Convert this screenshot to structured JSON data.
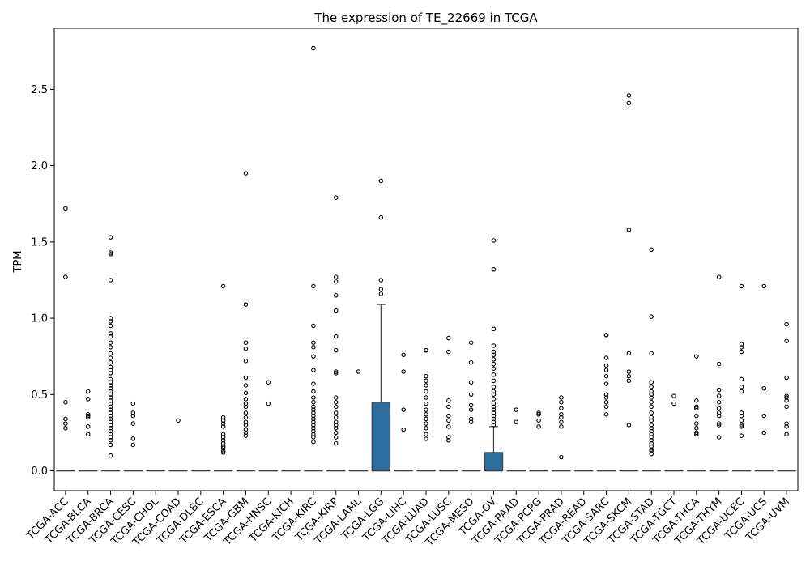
{
  "chart_data": {
    "type": "box",
    "title": "The expression of TE_22669 in TCGA",
    "xlabel": "",
    "ylabel": "TPM",
    "ylim": [
      -0.13,
      2.9
    ],
    "yticks": [
      0.0,
      0.5,
      1.0,
      1.5,
      2.0,
      2.5
    ],
    "ytick_labels": [
      "0.0",
      "0.5",
      "1.0",
      "1.5",
      "2.0",
      "2.5"
    ],
    "grid": false,
    "legend": "none",
    "box_color": "#2e6e9e",
    "categories": [
      "TCGA-ACC",
      "TCGA-BLCA",
      "TCGA-BRCA",
      "TCGA-CESC",
      "TCGA-CHOL",
      "TCGA-COAD",
      "TCGA-DLBC",
      "TCGA-ESCA",
      "TCGA-GBM",
      "TCGA-HNSC",
      "TCGA-KICH",
      "TCGA-KIRC",
      "TCGA-KIRP",
      "TCGA-LAML",
      "TCGA-LGG",
      "TCGA-LIHC",
      "TCGA-LUAD",
      "TCGA-LUSC",
      "TCGA-MESO",
      "TCGA-OV",
      "TCGA-PAAD",
      "TCGA-PCPG",
      "TCGA-PRAD",
      "TCGA-READ",
      "TCGA-SARC",
      "TCGA-SKCM",
      "TCGA-STAD",
      "TCGA-TGCT",
      "TCGA-THCA",
      "TCGA-THYM",
      "TCGA-UCEC",
      "TCGA-UCS",
      "TCGA-UVM"
    ],
    "boxes": [
      {
        "q1": 0,
        "median": 0,
        "q3": 0,
        "whisker_low": 0,
        "whisker_high": 0,
        "outliers": [
          1.72,
          1.27,
          0.45,
          0.34,
          0.31,
          0.28
        ]
      },
      {
        "q1": 0,
        "median": 0,
        "q3": 0,
        "whisker_low": 0,
        "whisker_high": 0,
        "outliers": [
          0.52,
          0.47,
          0.37,
          0.36,
          0.35,
          0.29,
          0.24
        ]
      },
      {
        "q1": 0,
        "median": 0,
        "q3": 0,
        "whisker_low": 0,
        "whisker_high": 0,
        "outliers": [
          1.53,
          1.43,
          1.42,
          1.25,
          1.0,
          0.98,
          0.95,
          0.9,
          0.88,
          0.84,
          0.81,
          0.77,
          0.74,
          0.71,
          0.68,
          0.66,
          0.64,
          0.6,
          0.58,
          0.56,
          0.54,
          0.52,
          0.5,
          0.48,
          0.46,
          0.44,
          0.42,
          0.4,
          0.38,
          0.36,
          0.34,
          0.32,
          0.3,
          0.28,
          0.26,
          0.24,
          0.22,
          0.2,
          0.17,
          0.1
        ]
      },
      {
        "q1": 0,
        "median": 0,
        "q3": 0,
        "whisker_low": 0,
        "whisker_high": 0,
        "outliers": [
          0.44,
          0.38,
          0.36,
          0.31,
          0.21,
          0.17
        ]
      },
      {
        "q1": 0,
        "median": 0,
        "q3": 0,
        "whisker_low": 0,
        "whisker_high": 0,
        "outliers": []
      },
      {
        "q1": 0,
        "median": 0,
        "q3": 0,
        "whisker_low": 0,
        "whisker_high": 0,
        "outliers": [
          0.33
        ]
      },
      {
        "q1": 0,
        "median": 0,
        "q3": 0,
        "whisker_low": 0,
        "whisker_high": 0,
        "outliers": []
      },
      {
        "q1": 0,
        "median": 0,
        "q3": 0,
        "whisker_low": 0,
        "whisker_high": 0,
        "outliers": [
          1.21,
          0.35,
          0.33,
          0.31,
          0.29,
          0.24,
          0.22,
          0.2,
          0.18,
          0.16,
          0.15,
          0.13,
          0.12
        ]
      },
      {
        "q1": 0,
        "median": 0,
        "q3": 0,
        "whisker_low": 0,
        "whisker_high": 0,
        "outliers": [
          1.95,
          1.09,
          0.84,
          0.8,
          0.72,
          0.61,
          0.56,
          0.51,
          0.47,
          0.44,
          0.42,
          0.38,
          0.35,
          0.32,
          0.3,
          0.27,
          0.25,
          0.23
        ]
      },
      {
        "q1": 0,
        "median": 0,
        "q3": 0,
        "whisker_low": 0,
        "whisker_high": 0,
        "outliers": [
          0.58,
          0.44
        ]
      },
      {
        "q1": 0,
        "median": 0,
        "q3": 0,
        "whisker_low": 0,
        "whisker_high": 0,
        "outliers": []
      },
      {
        "q1": 0,
        "median": 0,
        "q3": 0,
        "whisker_low": 0,
        "whisker_high": 0,
        "outliers": [
          2.77,
          1.21,
          0.95,
          0.84,
          0.81,
          0.75,
          0.66,
          0.57,
          0.52,
          0.48,
          0.45,
          0.42,
          0.4,
          0.38,
          0.36,
          0.34,
          0.32,
          0.3,
          0.28,
          0.26,
          0.24,
          0.22,
          0.19
        ]
      },
      {
        "q1": 0,
        "median": 0,
        "q3": 0,
        "whisker_low": 0,
        "whisker_high": 0,
        "outliers": [
          1.79,
          1.27,
          1.24,
          1.15,
          1.05,
          0.88,
          0.79,
          0.65,
          0.64,
          0.48,
          0.45,
          0.42,
          0.38,
          0.35,
          0.32,
          0.3,
          0.28,
          0.25,
          0.22,
          0.18
        ]
      },
      {
        "q1": 0,
        "median": 0,
        "q3": 0,
        "whisker_low": 0,
        "whisker_high": 0,
        "outliers": [
          0.65
        ]
      },
      {
        "q1": 0,
        "median": 0,
        "q3": 0.45,
        "whisker_low": 0,
        "whisker_high": 1.09,
        "outliers": [
          1.9,
          1.66,
          1.25,
          1.19,
          1.16
        ]
      },
      {
        "q1": 0,
        "median": 0,
        "q3": 0,
        "whisker_low": 0,
        "whisker_high": 0,
        "outliers": [
          0.76,
          0.65,
          0.4,
          0.27
        ]
      },
      {
        "q1": 0,
        "median": 0,
        "q3": 0,
        "whisker_low": 0,
        "whisker_high": 0,
        "outliers": [
          0.79,
          0.79,
          0.62,
          0.59,
          0.56,
          0.52,
          0.48,
          0.44,
          0.4,
          0.37,
          0.34,
          0.31,
          0.28,
          0.24,
          0.21
        ]
      },
      {
        "q1": 0,
        "median": 0,
        "q3": 0,
        "whisker_low": 0,
        "whisker_high": 0,
        "outliers": [
          0.87,
          0.78,
          0.46,
          0.42,
          0.36,
          0.33,
          0.29,
          0.22,
          0.2
        ]
      },
      {
        "q1": 0,
        "median": 0,
        "q3": 0,
        "whisker_low": 0,
        "whisker_high": 0,
        "outliers": [
          0.84,
          0.71,
          0.58,
          0.5,
          0.43,
          0.4,
          0.34,
          0.32
        ]
      },
      {
        "q1": 0,
        "median": 0,
        "q3": 0.12,
        "whisker_low": 0,
        "whisker_high": 0.29,
        "outliers": [
          1.51,
          1.32,
          0.93,
          0.82,
          0.78,
          0.76,
          0.73,
          0.7,
          0.67,
          0.63,
          0.59,
          0.55,
          0.52,
          0.5,
          0.47,
          0.44,
          0.42,
          0.4,
          0.38,
          0.36,
          0.34,
          0.32,
          0.3
        ]
      },
      {
        "q1": 0,
        "median": 0,
        "q3": 0,
        "whisker_low": 0,
        "whisker_high": 0,
        "outliers": [
          0.4,
          0.32
        ]
      },
      {
        "q1": 0,
        "median": 0,
        "q3": 0,
        "whisker_low": 0,
        "whisker_high": 0,
        "outliers": [
          0.38,
          0.37,
          0.33,
          0.29
        ]
      },
      {
        "q1": 0,
        "median": 0,
        "q3": 0,
        "whisker_low": 0,
        "whisker_high": 0,
        "outliers": [
          0.48,
          0.45,
          0.41,
          0.37,
          0.35,
          0.32,
          0.29,
          0.09
        ]
      },
      {
        "q1": 0,
        "median": 0,
        "q3": 0,
        "whisker_low": 0,
        "whisker_high": 0,
        "outliers": []
      },
      {
        "q1": 0,
        "median": 0,
        "q3": 0,
        "whisker_low": 0,
        "whisker_high": 0,
        "outliers": [
          0.89,
          0.89,
          0.74,
          0.69,
          0.66,
          0.62,
          0.57,
          0.5,
          0.48,
          0.45,
          0.42,
          0.37
        ]
      },
      {
        "q1": 0,
        "median": 0,
        "q3": 0,
        "whisker_low": 0,
        "whisker_high": 0,
        "outliers": [
          2.46,
          2.41,
          1.58,
          0.77,
          0.65,
          0.62,
          0.59,
          0.3
        ]
      },
      {
        "q1": 0,
        "median": 0,
        "q3": 0,
        "whisker_low": 0,
        "whisker_high": 0,
        "outliers": [
          1.45,
          1.01,
          0.77,
          0.58,
          0.55,
          0.52,
          0.5,
          0.48,
          0.45,
          0.42,
          0.38,
          0.35,
          0.33,
          0.3,
          0.28,
          0.26,
          0.24,
          0.22,
          0.2,
          0.18,
          0.16,
          0.14,
          0.13,
          0.11
        ]
      },
      {
        "q1": 0,
        "median": 0,
        "q3": 0,
        "whisker_low": 0,
        "whisker_high": 0,
        "outliers": [
          0.49,
          0.44
        ]
      },
      {
        "q1": 0,
        "median": 0,
        "q3": 0,
        "whisker_low": 0,
        "whisker_high": 0,
        "outliers": [
          0.75,
          0.46,
          0.42,
          0.41,
          0.36,
          0.31,
          0.28,
          0.25,
          0.24
        ]
      },
      {
        "q1": 0,
        "median": 0,
        "q3": 0,
        "whisker_low": 0,
        "whisker_high": 0,
        "outliers": [
          1.27,
          0.7,
          0.53,
          0.49,
          0.45,
          0.41,
          0.38,
          0.36,
          0.31,
          0.3,
          0.22
        ]
      },
      {
        "q1": 0,
        "median": 0,
        "q3": 0,
        "whisker_low": 0,
        "whisker_high": 0,
        "outliers": [
          1.21,
          0.83,
          0.81,
          0.78,
          0.6,
          0.55,
          0.52,
          0.38,
          0.36,
          0.33,
          0.3,
          0.29,
          0.23
        ]
      },
      {
        "q1": 0,
        "median": 0,
        "q3": 0,
        "whisker_low": 0,
        "whisker_high": 0,
        "outliers": [
          1.21,
          0.54,
          0.36,
          0.25
        ]
      },
      {
        "q1": 0,
        "median": 0,
        "q3": 0,
        "whisker_low": 0,
        "whisker_high": 0,
        "outliers": [
          0.96,
          0.85,
          0.61,
          0.49,
          0.48,
          0.46,
          0.42,
          0.31,
          0.29,
          0.24
        ]
      }
    ]
  }
}
